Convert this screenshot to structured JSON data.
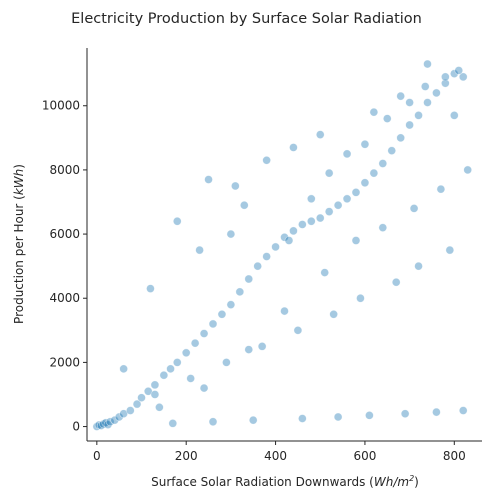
{
  "chart_data": {
    "type": "scatter",
    "title": "Electricity Production by Surface Solar Radiation",
    "xlabel": "Surface Solar Radiation Downwards (",
    "xlabel_unit_base": "Wh/m",
    "xlabel_unit_exp": "2",
    "xlabel_close": ")",
    "ylabel": "Production per Hour (",
    "ylabel_unit": "kWh",
    "ylabel_close": ")",
    "xlim": [
      -22,
      862
    ],
    "ylim": [
      -450,
      11800
    ],
    "xticks": [
      0,
      200,
      400,
      600,
      800
    ],
    "yticks": [
      0,
      2000,
      4000,
      6000,
      8000,
      10000
    ],
    "grid": false,
    "legend": "none",
    "color": "#1f77b4",
    "alpha": 0.4,
    "series": [
      {
        "x": [
          0,
          5,
          10,
          15,
          20,
          25,
          30,
          40,
          50,
          60,
          75,
          90,
          100,
          115,
          130,
          150,
          165,
          180,
          200,
          220,
          240,
          260,
          280,
          300,
          320,
          340,
          360,
          380,
          400,
          420,
          440,
          460,
          480,
          500,
          520,
          540,
          560,
          580,
          600,
          620,
          640,
          660,
          680,
          700,
          720,
          740,
          760,
          780,
          800,
          820,
          60,
          120,
          180,
          250,
          310,
          380,
          440,
          500,
          560,
          620,
          680,
          740,
          800,
          230,
          300,
          330,
          430,
          480,
          520,
          600,
          650,
          700,
          735,
          780,
          810,
          170,
          260,
          350,
          460,
          540,
          610,
          690,
          760,
          820,
          130,
          210,
          290,
          370,
          450,
          530,
          590,
          670,
          720,
          790,
          140,
          240,
          340,
          420,
          510,
          580,
          640,
          710,
          770,
          830
        ],
        "y": [
          0,
          50,
          30,
          80,
          120,
          60,
          150,
          200,
          300,
          400,
          500,
          700,
          900,
          1100,
          1300,
          1600,
          1800,
          2000,
          2300,
          2600,
          2900,
          3200,
          3500,
          3800,
          4200,
          4600,
          5000,
          5300,
          5600,
          5900,
          6100,
          6300,
          6400,
          6500,
          6700,
          6900,
          7100,
          7300,
          7600,
          7900,
          8200,
          8600,
          9000,
          9400,
          9700,
          10100,
          10400,
          10700,
          11000,
          10900,
          1800,
          4300,
          6400,
          7700,
          7500,
          8300,
          8700,
          9100,
          8500,
          9800,
          10300,
          11300,
          9700,
          5500,
          6000,
          6900,
          5800,
          7100,
          7900,
          8800,
          9600,
          10100,
          10600,
          10900,
          11100,
          100,
          150,
          200,
          250,
          300,
          350,
          400,
          450,
          500,
          1000,
          1500,
          2000,
          2500,
          3000,
          3500,
          4000,
          4500,
          5000,
          5500,
          600,
          1200,
          2400,
          3600,
          4800,
          5800,
          6200,
          6800,
          7400,
          8000
        ]
      }
    ]
  }
}
